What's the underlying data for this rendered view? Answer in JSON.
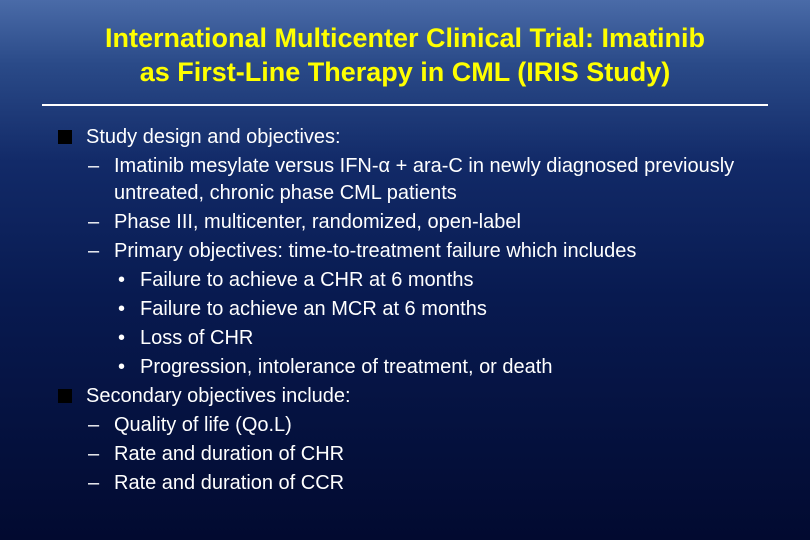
{
  "colors": {
    "title": "#ffff00",
    "text": "#ffffff",
    "square_bullet": "#000000",
    "bg_top": "#4a6ba8",
    "bg_bottom": "#020a30"
  },
  "fontsize": {
    "title": 27,
    "body": 20
  },
  "title_line1": "International Multicenter Clinical Trial:  Imatinib",
  "title_line2": "as First-Line Therapy in CML (IRIS Study)",
  "bullets": {
    "b1": "Study design and objectives:",
    "b1_1": "Imatinib mesylate versus IFN-α + ara-C in newly diagnosed previously untreated, chronic phase CML patients",
    "b1_2": "Phase III, multicenter, randomized, open-label",
    "b1_3": "Primary objectives:  time-to-treatment failure which includes",
    "b1_3_1": "Failure to achieve a CHR at 6 months",
    "b1_3_2": "Failure to achieve an MCR at 6 months",
    "b1_3_3": "Loss of CHR",
    "b1_3_4": "Progression, intolerance of treatment, or death",
    "b2": "Secondary objectives include:",
    "b2_1": "Quality of life (Qo.L)",
    "b2_2": "Rate and duration of CHR",
    "b2_3": "Rate and duration of CCR"
  }
}
